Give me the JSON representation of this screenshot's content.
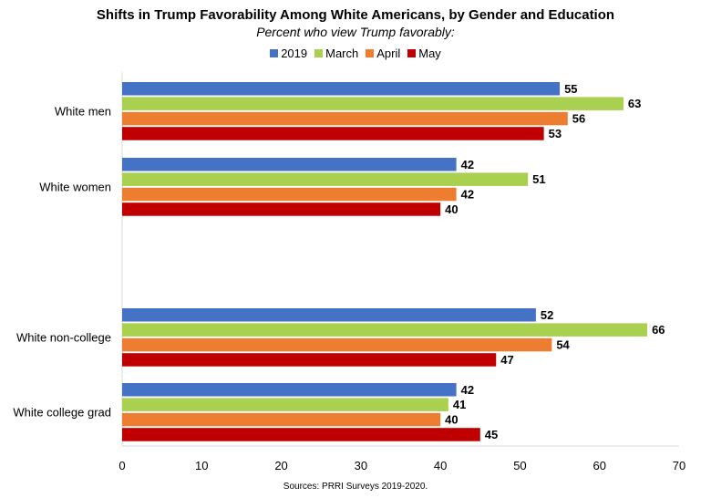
{
  "chart_data": {
    "type": "bar",
    "orientation": "horizontal",
    "title": "Shifts in Trump Favorability Among White Americans, by Gender and Education",
    "subtitle": "Percent who view Trump favorably:",
    "source": "Sources: PRRI Surveys 2019-2020.",
    "categories": [
      "White men",
      "White women",
      "",
      "White non-college",
      "White college grad"
    ],
    "series": [
      {
        "name": "2019",
        "color": "#4472C4",
        "values": [
          55,
          42,
          null,
          52,
          42
        ]
      },
      {
        "name": "March",
        "color": "#A9D04F",
        "values": [
          63,
          51,
          null,
          66,
          41
        ]
      },
      {
        "name": "April",
        "color": "#ED7D31",
        "values": [
          56,
          42,
          null,
          54,
          40
        ]
      },
      {
        "name": "May",
        "color": "#C00000",
        "values": [
          53,
          40,
          null,
          47,
          45
        ]
      }
    ],
    "xlim": [
      0,
      70
    ],
    "xticks": [
      0,
      10,
      20,
      30,
      40,
      50,
      60,
      70
    ],
    "grid": false,
    "legend_position": "top"
  }
}
